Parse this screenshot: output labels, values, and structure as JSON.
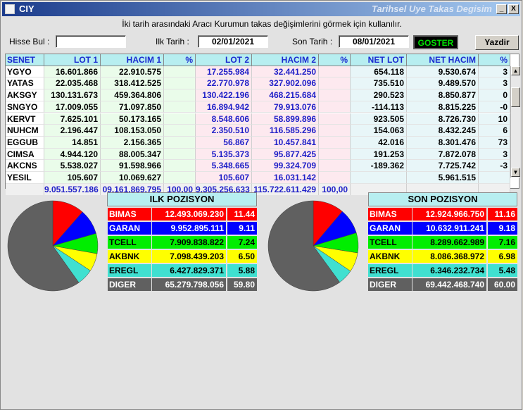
{
  "window": {
    "title": "CIY",
    "subtitle": "Tarihsel Uye Takas Degisim",
    "minimize": "_",
    "close": "X"
  },
  "instructions": "İki tarih arasındaki  Aracı Kurumun takas değişimlerini görmek için kullanılır.",
  "form": {
    "hisse_label": "Hisse Bul :",
    "hisse_value": "",
    "ilk_label": "Ilk Tarih :",
    "ilk_value": "02/01/2021",
    "son_label": "Son Tarih :",
    "son_value": "08/01/2021",
    "goster": "GOSTER",
    "yazdir": "Yazdir"
  },
  "grid": {
    "headers": [
      "SENET",
      "LOT 1",
      "HACIM 1",
      "%",
      "LOT 2",
      "HACIM 2",
      "%",
      "NET LOT",
      "NET HACIM",
      "%"
    ],
    "rows": [
      [
        "YGYO",
        "16.601.866",
        "22.910.575",
        "",
        "17.255.984",
        "32.441.250",
        "",
        "654.118",
        "9.530.674",
        "3"
      ],
      [
        "YATAS",
        "22.035.468",
        "318.412.525",
        "",
        "22.770.978",
        "327.902.096",
        "",
        "735.510",
        "9.489.570",
        "3"
      ],
      [
        "AKSGY",
        "130.131.673",
        "459.364.806",
        "",
        "130.422.196",
        "468.215.684",
        "",
        "290.523",
        "8.850.877",
        "0"
      ],
      [
        "SNGYO",
        "17.009.055",
        "71.097.850",
        "",
        "16.894.942",
        "79.913.076",
        "",
        "-114.113",
        "8.815.225",
        "-0"
      ],
      [
        "KERVT",
        "7.625.101",
        "50.173.165",
        "",
        "8.548.606",
        "58.899.896",
        "",
        "923.505",
        "8.726.730",
        "10"
      ],
      [
        "NUHCM",
        "2.196.447",
        "108.153.050",
        "",
        "2.350.510",
        "116.585.296",
        "",
        "154.063",
        "8.432.245",
        "6"
      ],
      [
        "EGGUB",
        "14.851",
        "2.156.365",
        "",
        "56.867",
        "10.457.841",
        "",
        "42.016",
        "8.301.476",
        "73"
      ],
      [
        "CIMSA",
        "4.944.120",
        "88.005.347",
        "",
        "5.135.373",
        "95.877.425",
        "",
        "191.253",
        "7.872.078",
        "3"
      ],
      [
        "AKCNS",
        "5.538.027",
        "91.598.966",
        "",
        "5.348.665",
        "99.324.709",
        "",
        "-189.362",
        "7.725.742",
        "-3"
      ],
      [
        "YESIL",
        "105.607",
        "10.069.627",
        "",
        "105.607",
        "16.031.142",
        "",
        "",
        "5.961.515",
        ""
      ]
    ],
    "totals": [
      "",
      "9.051.557.186",
      "09.161.869.795",
      "100,00",
      "9.305.256.633",
      "115.722.611.429",
      "100,00",
      "",
      "",
      ""
    ]
  },
  "ilk": {
    "title": "ILK POZISYON",
    "rows": [
      {
        "name": "BIMAS",
        "value": "12.493.069.230",
        "pct": "11.44",
        "bg": "#ff0000",
        "fg": "#ffffff"
      },
      {
        "name": "GARAN",
        "value": "9.952.895.111",
        "pct": "9.11",
        "bg": "#0000ff",
        "fg": "#ffffff"
      },
      {
        "name": "TCELL",
        "value": "7.909.838.822",
        "pct": "7.24",
        "bg": "#00ee00",
        "fg": "#000000"
      },
      {
        "name": "AKBNK",
        "value": "7.098.439.203",
        "pct": "6.50",
        "bg": "#ffff00",
        "fg": "#000000"
      },
      {
        "name": "EREGL",
        "value": "6.427.829.371",
        "pct": "5.88",
        "bg": "#40e0d0",
        "fg": "#000000"
      },
      {
        "name": "DIGER",
        "value": "65.279.798.056",
        "pct": "59.80",
        "bg": "#606060",
        "fg": "#ffffff"
      }
    ]
  },
  "son": {
    "title": "SON POZISYON",
    "rows": [
      {
        "name": "BIMAS",
        "value": "12.924.966.750",
        "pct": "11.16",
        "bg": "#ff0000",
        "fg": "#ffffff"
      },
      {
        "name": "GARAN",
        "value": "10.632.911.241",
        "pct": "9.18",
        "bg": "#0000ff",
        "fg": "#ffffff"
      },
      {
        "name": "TCELL",
        "value": "8.289.662.989",
        "pct": "7.16",
        "bg": "#00ee00",
        "fg": "#000000"
      },
      {
        "name": "AKBNK",
        "value": "8.086.368.972",
        "pct": "6.98",
        "bg": "#ffff00",
        "fg": "#000000"
      },
      {
        "name": "EREGL",
        "value": "6.346.232.734",
        "pct": "5.48",
        "bg": "#40e0d0",
        "fg": "#000000"
      },
      {
        "name": "DIGER",
        "value": "69.442.468.740",
        "pct": "60.00",
        "bg": "#606060",
        "fg": "#ffffff"
      }
    ]
  }
}
